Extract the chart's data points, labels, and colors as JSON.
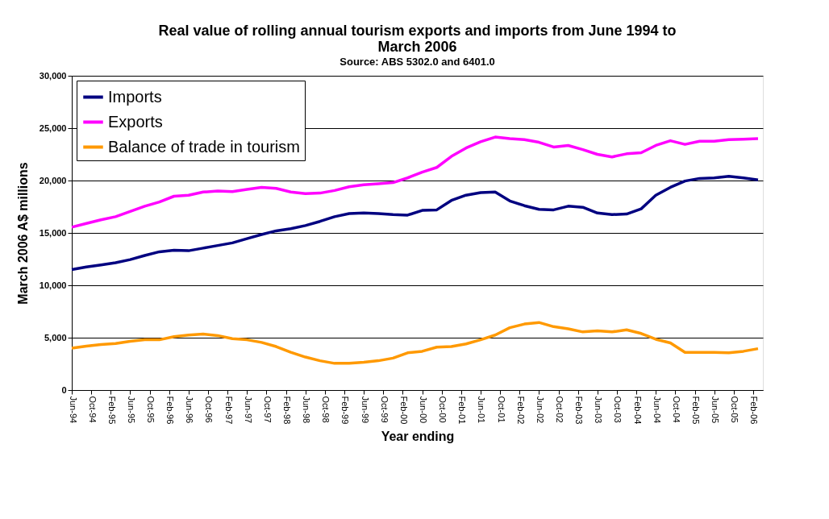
{
  "chart_data": {
    "type": "line",
    "title": "Real value of rolling annual tourism exports and imports from June 1994 to March 2006",
    "subtitle": "Source: ABS 5302.0 and 6401.0",
    "xlabel": "Year ending",
    "ylabel": "March 2006 A$ millions",
    "x": [
      "1994-06",
      "1994-09",
      "1994-12",
      "1995-03",
      "1995-06",
      "1995-09",
      "1995-12",
      "1996-03",
      "1996-06",
      "1996-09",
      "1996-12",
      "1997-03",
      "1997-06",
      "1997-09",
      "1997-12",
      "1998-03",
      "1998-06",
      "1998-09",
      "1998-12",
      "1999-03",
      "1999-06",
      "1999-09",
      "1999-12",
      "2000-03",
      "2000-06",
      "2000-09",
      "2000-12",
      "2001-03",
      "2001-06",
      "2001-09",
      "2001-12",
      "2002-03",
      "2002-06",
      "2002-09",
      "2002-12",
      "2003-03",
      "2003-06",
      "2003-09",
      "2003-12",
      "2004-03",
      "2004-06",
      "2004-09",
      "2004-12",
      "2005-03",
      "2005-06",
      "2005-09",
      "2005-12",
      "2006-03"
    ],
    "series": [
      {
        "name": "Imports",
        "color": "#000080",
        "values": [
          11500,
          11750,
          11950,
          12150,
          12450,
          12850,
          13200,
          13350,
          13300,
          13550,
          13800,
          14050,
          14450,
          14850,
          15200,
          15400,
          15700,
          16100,
          16550,
          16850,
          16900,
          16850,
          16750,
          16700,
          17150,
          17200,
          18100,
          18600,
          18850,
          18900,
          18050,
          17600,
          17250,
          17200,
          17550,
          17450,
          16900,
          16750,
          16800,
          17300,
          18600,
          19350,
          19950,
          20200,
          20250,
          20400,
          20250,
          20050
        ]
      },
      {
        "name": "Exports",
        "color": "#ff00ff",
        "values": [
          15550,
          15900,
          16250,
          16550,
          17050,
          17550,
          17950,
          18500,
          18600,
          18900,
          19000,
          18950,
          19150,
          19350,
          19250,
          18900,
          18750,
          18800,
          19050,
          19400,
          19600,
          19700,
          19800,
          20250,
          20800,
          21250,
          22300,
          23100,
          23700,
          24150,
          24000,
          23900,
          23650,
          23200,
          23350,
          22950,
          22500,
          22250,
          22550,
          22650,
          23350,
          23800,
          23450,
          23750,
          23750,
          23900,
          23950,
          24000
        ]
      },
      {
        "name": "Balance of trade in tourism",
        "color": "#ff9900",
        "values": [
          4000,
          4200,
          4350,
          4450,
          4650,
          4800,
          4800,
          5100,
          5250,
          5350,
          5200,
          4900,
          4800,
          4550,
          4150,
          3600,
          3150,
          2800,
          2550,
          2550,
          2650,
          2800,
          3050,
          3550,
          3700,
          4100,
          4150,
          4400,
          4800,
          5250,
          5950,
          6300,
          6450,
          6050,
          5850,
          5550,
          5650,
          5550,
          5750,
          5400,
          4850,
          4500,
          3600,
          3600,
          3600,
          3550,
          3700,
          3950
        ]
      }
    ],
    "xlim": [
      "1994-06",
      "2006-04"
    ],
    "xticks": [
      {
        "value": "1994-06",
        "label": "Jun-94"
      },
      {
        "value": "1994-10",
        "label": "Oct-94"
      },
      {
        "value": "1995-02",
        "label": "Feb-95"
      },
      {
        "value": "1995-06",
        "label": "Jun-95"
      },
      {
        "value": "1995-10",
        "label": "Oct-95"
      },
      {
        "value": "1996-02",
        "label": "Feb-96"
      },
      {
        "value": "1996-06",
        "label": "Jun-96"
      },
      {
        "value": "1996-10",
        "label": "Oct-96"
      },
      {
        "value": "1997-02",
        "label": "Feb-97"
      },
      {
        "value": "1997-06",
        "label": "Jun-97"
      },
      {
        "value": "1997-10",
        "label": "Oct-97"
      },
      {
        "value": "1998-02",
        "label": "Feb-98"
      },
      {
        "value": "1998-06",
        "label": "Jun-98"
      },
      {
        "value": "1998-10",
        "label": "Oct-98"
      },
      {
        "value": "1999-02",
        "label": "Feb-99"
      },
      {
        "value": "1999-06",
        "label": "Jun-99"
      },
      {
        "value": "1999-10",
        "label": "Oct-99"
      },
      {
        "value": "2000-02",
        "label": "Feb-00"
      },
      {
        "value": "2000-06",
        "label": "Jun-00"
      },
      {
        "value": "2000-10",
        "label": "Oct-00"
      },
      {
        "value": "2001-02",
        "label": "Feb-01"
      },
      {
        "value": "2001-06",
        "label": "Jun-01"
      },
      {
        "value": "2001-10",
        "label": "Oct-01"
      },
      {
        "value": "2002-02",
        "label": "Feb-02"
      },
      {
        "value": "2002-06",
        "label": "Jun-02"
      },
      {
        "value": "2002-10",
        "label": "Oct-02"
      },
      {
        "value": "2003-02",
        "label": "Feb-03"
      },
      {
        "value": "2003-06",
        "label": "Jun-03"
      },
      {
        "value": "2003-10",
        "label": "Oct-03"
      },
      {
        "value": "2004-02",
        "label": "Feb-04"
      },
      {
        "value": "2004-06",
        "label": "Jun-04"
      },
      {
        "value": "2004-10",
        "label": "Oct-04"
      },
      {
        "value": "2005-02",
        "label": "Feb-05"
      },
      {
        "value": "2005-06",
        "label": "Jun-05"
      },
      {
        "value": "2005-10",
        "label": "Oct-05"
      },
      {
        "value": "2006-02",
        "label": "Feb-06"
      }
    ],
    "ylim": [
      0,
      30000
    ],
    "yticks": [
      {
        "value": 0,
        "label": "0"
      },
      {
        "value": 5000,
        "label": "5,000"
      },
      {
        "value": 10000,
        "label": "10,000"
      },
      {
        "value": 15000,
        "label": "15,000"
      },
      {
        "value": 20000,
        "label": "20,000"
      },
      {
        "value": 25000,
        "label": "25,000"
      },
      {
        "value": 30000,
        "label": "30,000"
      }
    ],
    "grid": "y",
    "legend": "top left",
    "marker": "none",
    "line_style": "solid"
  }
}
